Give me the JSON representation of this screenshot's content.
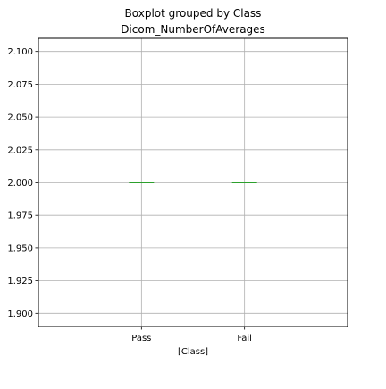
{
  "chart_data": {
    "type": "box",
    "title": "Boxplot grouped by Class",
    "subtitle": "Dicom_NumberOfAverages",
    "xlabel": "[Class]",
    "ylabel": "",
    "categories": [
      "Pass",
      "Fail"
    ],
    "series": [
      {
        "category": "Pass",
        "min": 2.0,
        "q1": 2.0,
        "median": 2.0,
        "q3": 2.0,
        "max": 2.0
      },
      {
        "category": "Fail",
        "min": 2.0,
        "q1": 2.0,
        "median": 2.0,
        "q3": 2.0,
        "max": 2.0
      }
    ],
    "ylim": [
      1.89,
      2.11
    ],
    "yticks": [
      1.9,
      1.925,
      1.95,
      1.975,
      2.0,
      2.025,
      2.05,
      2.075,
      2.1
    ],
    "yticklabels": [
      "1.900",
      "1.925",
      "1.950",
      "1.975",
      "2.000",
      "2.025",
      "2.050",
      "2.075",
      "2.100"
    ],
    "grid": true,
    "colors": {
      "box": "#1f77b4",
      "median": "#2ca02c",
      "grid": "#b0b0b0",
      "axes": "#000000"
    }
  }
}
